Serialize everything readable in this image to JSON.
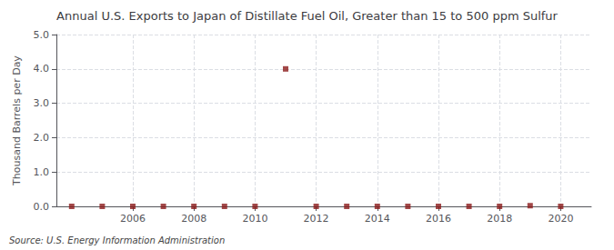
{
  "chart_data": {
    "type": "scatter",
    "title": "Annual U.S. Exports to Japan of Distillate Fuel Oil, Greater than 15 to 500 ppm Sulfur",
    "ylabel": "Thousand Barrels per Day",
    "source": "Source: U.S. Energy Information Administration",
    "x": [
      2004,
      2005,
      2006,
      2007,
      2008,
      2009,
      2010,
      2011,
      2012,
      2013,
      2014,
      2015,
      2016,
      2017,
      2018,
      2019,
      2020
    ],
    "values": [
      0.0,
      0.0,
      0.0,
      0.0,
      0.0,
      0.0,
      0.0,
      4.0,
      0.0,
      0.0,
      0.0,
      0.0,
      0.0,
      0.0,
      0.0,
      0.02,
      0.0
    ],
    "color": "#8B1A1A",
    "marker": "square",
    "xlim": [
      2003.5,
      2021.0
    ],
    "xticks": [
      2006,
      2008,
      2010,
      2012,
      2014,
      2016,
      2018,
      2020
    ],
    "ylim": [
      0.0,
      5.0
    ],
    "yticks": [
      {
        "value": 0.0,
        "label": "0.0"
      },
      {
        "value": 1.0,
        "label": "1.0"
      },
      {
        "value": 2.0,
        "label": "2.0"
      },
      {
        "value": 3.0,
        "label": "3.0"
      },
      {
        "value": 4.0,
        "label": "4.0"
      },
      {
        "value": 5.0,
        "label": "5.0"
      }
    ],
    "grid": true
  }
}
